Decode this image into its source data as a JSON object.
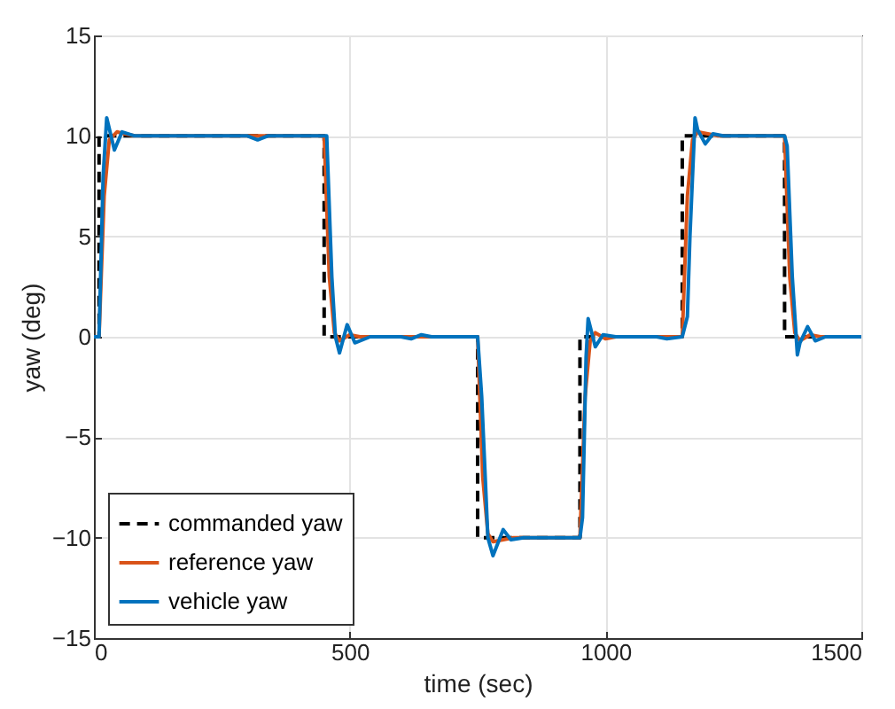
{
  "chart_data": {
    "type": "line",
    "xlabel": "time (sec)",
    "ylabel": "yaw (deg)",
    "xlim": [
      0,
      1500
    ],
    "ylim": [
      -15,
      15
    ],
    "xticks": [
      0,
      500,
      1000,
      1500
    ],
    "yticks": [
      -15,
      -10,
      -5,
      0,
      5,
      10,
      15
    ],
    "grid": true,
    "legend": "bottom left",
    "marker": "none",
    "series": [
      {
        "name": "commanded yaw",
        "color": "#000000",
        "line_style": "dashed",
        "x": [
          0,
          10,
          10,
          450,
          450,
          750,
          750,
          950,
          950,
          1150,
          1150,
          1350,
          1350,
          1500
        ],
        "values": [
          0,
          0,
          10,
          10,
          0,
          0,
          -10,
          -10,
          0,
          0,
          10,
          10,
          0,
          0
        ]
      },
      {
        "name": "reference yaw",
        "color": "#d95319",
        "line_style": "solid",
        "x": [
          0,
          10,
          20,
          30,
          45,
          60,
          80,
          320,
          440,
          450,
          460,
          470,
          480,
          500,
          520,
          750,
          760,
          770,
          780,
          800,
          820,
          950,
          960,
          970,
          980,
          1000,
          1020,
          1150,
          1160,
          1170,
          1180,
          1200,
          1220,
          1350,
          1360,
          1370,
          1380,
          1400,
          1420,
          1500
        ],
        "values": [
          0,
          0,
          7,
          9.8,
          10.2,
          10.1,
          10,
          10,
          10,
          10,
          3,
          0.2,
          -0.2,
          0.1,
          0,
          0,
          -7,
          -9.8,
          -10.2,
          -10.1,
          -10,
          -10,
          -3,
          -0.2,
          0.2,
          -0.1,
          0,
          0,
          7,
          9.8,
          10.2,
          10.1,
          10,
          10,
          3,
          0.2,
          -0.2,
          0.1,
          0,
          0
        ]
      },
      {
        "name": "vehicle yaw",
        "color": "#0072bd",
        "line_style": "solid",
        "x": [
          0,
          10,
          18,
          25,
          40,
          55,
          80,
          300,
          320,
          340,
          450,
          455,
          465,
          472,
          480,
          495,
          510,
          540,
          600,
          620,
          640,
          660,
          750,
          758,
          770,
          780,
          800,
          815,
          840,
          950,
          955,
          962,
          966,
          980,
          995,
          1020,
          1100,
          1120,
          1150,
          1160,
          1165,
          1175,
          1180,
          1195,
          1210,
          1230,
          1350,
          1355,
          1365,
          1375,
          1380,
          1395,
          1410,
          1430,
          1500
        ],
        "values": [
          0,
          0,
          8,
          10.9,
          9.3,
          10.2,
          10,
          10,
          9.8,
          10,
          10,
          10,
          3,
          0,
          -0.8,
          0.6,
          -0.3,
          0,
          0,
          -0.1,
          0.1,
          0,
          0,
          -3,
          -10,
          -10.9,
          -9.6,
          -10.1,
          -10,
          -10,
          -9,
          -1,
          0.9,
          -0.5,
          0.1,
          0,
          0,
          -0.1,
          0,
          1,
          5,
          10.9,
          10.3,
          9.6,
          10.1,
          10,
          10,
          9.5,
          3,
          -0.9,
          -0.3,
          0.5,
          -0.2,
          0,
          0
        ]
      }
    ]
  }
}
